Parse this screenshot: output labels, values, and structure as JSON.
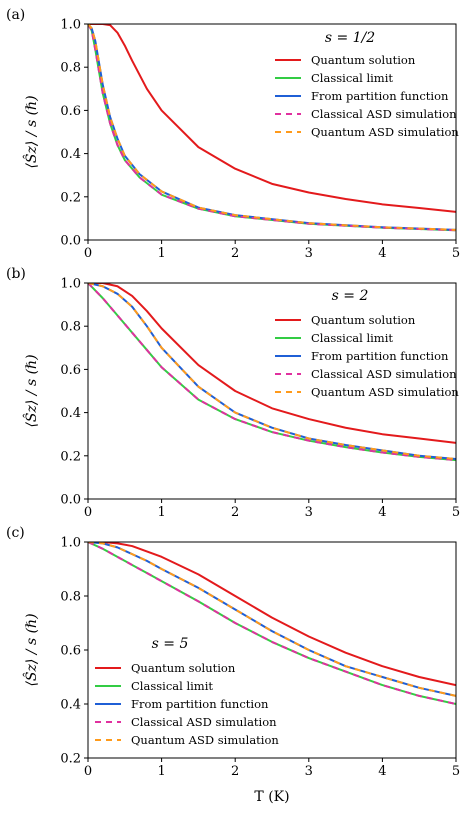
{
  "chart_data": [
    {
      "panel_label": "(a)",
      "type": "line",
      "annotation": "s = 1/2",
      "xlabel": "",
      "ylabel": "⟨Ŝz⟩ / s (ℏ)",
      "xlim": [
        0,
        5
      ],
      "ylim": [
        0,
        1
      ],
      "xticks": [
        0,
        1,
        2,
        3,
        4,
        5
      ],
      "yticks": [
        0.0,
        0.2,
        0.4,
        0.6,
        0.8,
        1.0
      ],
      "legend_position": "upper-right",
      "series": [
        {
          "name": "Quantum solution",
          "color": "#e31a1c",
          "style": "solid",
          "x": [
            0,
            0.2,
            0.3,
            0.4,
            0.5,
            0.6,
            0.8,
            1.0,
            1.5,
            2,
            2.5,
            3,
            3.5,
            4,
            4.5,
            5
          ],
          "y": [
            1.0,
            1.0,
            0.995,
            0.96,
            0.9,
            0.83,
            0.7,
            0.6,
            0.43,
            0.33,
            0.26,
            0.22,
            0.19,
            0.165,
            0.148,
            0.13
          ]
        },
        {
          "name": "Classical limit",
          "color": "#33cc44",
          "style": "solid",
          "x": [
            0,
            0.05,
            0.1,
            0.2,
            0.3,
            0.4,
            0.5,
            0.7,
            1.0,
            1.5,
            2,
            3,
            4,
            5
          ],
          "y": [
            1.0,
            0.97,
            0.88,
            0.68,
            0.54,
            0.44,
            0.37,
            0.29,
            0.21,
            0.145,
            0.11,
            0.075,
            0.057,
            0.045
          ]
        },
        {
          "name": "From partition function",
          "color": "#1f5fd6",
          "style": "solid",
          "x": [
            0,
            0.05,
            0.1,
            0.2,
            0.3,
            0.4,
            0.5,
            0.7,
            1.0,
            1.5,
            2,
            3,
            4,
            5
          ],
          "y": [
            1.0,
            0.98,
            0.92,
            0.72,
            0.57,
            0.47,
            0.39,
            0.305,
            0.225,
            0.15,
            0.115,
            0.078,
            0.059,
            0.047
          ]
        },
        {
          "name": "Classical ASD simulation",
          "color": "#e0309f",
          "style": "dashed",
          "x": [
            0,
            0.05,
            0.1,
            0.2,
            0.3,
            0.4,
            0.5,
            0.7,
            1.0,
            1.5,
            2,
            3,
            4,
            5
          ],
          "y": [
            1.0,
            0.97,
            0.88,
            0.68,
            0.54,
            0.44,
            0.37,
            0.29,
            0.21,
            0.145,
            0.11,
            0.075,
            0.057,
            0.045
          ]
        },
        {
          "name": "Quantum ASD simulation",
          "color": "#ff9a1a",
          "style": "dashed",
          "x": [
            0,
            0.05,
            0.1,
            0.2,
            0.3,
            0.4,
            0.5,
            0.7,
            1.0,
            1.5,
            2,
            3,
            4,
            5
          ],
          "y": [
            1.0,
            0.98,
            0.92,
            0.72,
            0.57,
            0.47,
            0.39,
            0.305,
            0.225,
            0.15,
            0.115,
            0.078,
            0.059,
            0.047
          ]
        }
      ]
    },
    {
      "panel_label": "(b)",
      "type": "line",
      "annotation": "s = 2",
      "xlabel": "",
      "ylabel": "⟨Ŝz⟩ / s (ℏ)",
      "xlim": [
        0,
        5
      ],
      "ylim": [
        0,
        1
      ],
      "xticks": [
        0,
        1,
        2,
        3,
        4,
        5
      ],
      "yticks": [
        0.0,
        0.2,
        0.4,
        0.6,
        0.8,
        1.0
      ],
      "legend_position": "upper-right",
      "series": [
        {
          "name": "Quantum solution",
          "color": "#e31a1c",
          "style": "solid",
          "x": [
            0,
            0.2,
            0.4,
            0.6,
            0.8,
            1.0,
            1.5,
            2,
            2.5,
            3,
            3.5,
            4,
            4.5,
            5
          ],
          "y": [
            1.0,
            1.0,
            0.985,
            0.94,
            0.87,
            0.79,
            0.62,
            0.5,
            0.42,
            0.37,
            0.33,
            0.3,
            0.28,
            0.26
          ]
        },
        {
          "name": "Classical limit",
          "color": "#33cc44",
          "style": "solid",
          "x": [
            0,
            0.2,
            0.4,
            0.6,
            0.8,
            1.0,
            1.5,
            2,
            2.5,
            3,
            3.5,
            4,
            4.5,
            5
          ],
          "y": [
            1.0,
            0.93,
            0.85,
            0.77,
            0.69,
            0.61,
            0.46,
            0.37,
            0.31,
            0.27,
            0.24,
            0.215,
            0.195,
            0.18
          ]
        },
        {
          "name": "From partition function",
          "color": "#1f5fd6",
          "style": "solid",
          "x": [
            0,
            0.2,
            0.4,
            0.6,
            0.8,
            1.0,
            1.5,
            2,
            2.5,
            3,
            3.5,
            4,
            4.5,
            5
          ],
          "y": [
            1.0,
            0.985,
            0.95,
            0.89,
            0.8,
            0.7,
            0.52,
            0.4,
            0.33,
            0.28,
            0.25,
            0.225,
            0.2,
            0.185
          ]
        },
        {
          "name": "Classical ASD simulation",
          "color": "#e0309f",
          "style": "dashed",
          "x": [
            0,
            0.2,
            0.4,
            0.6,
            0.8,
            1.0,
            1.5,
            2,
            2.5,
            3,
            3.5,
            4,
            4.5,
            5
          ],
          "y": [
            1.0,
            0.93,
            0.85,
            0.77,
            0.69,
            0.61,
            0.46,
            0.37,
            0.31,
            0.27,
            0.24,
            0.215,
            0.195,
            0.18
          ]
        },
        {
          "name": "Quantum ASD simulation",
          "color": "#ff9a1a",
          "style": "dashed",
          "x": [
            0,
            0.2,
            0.4,
            0.6,
            0.8,
            1.0,
            1.5,
            2,
            2.5,
            3,
            3.5,
            4,
            4.5,
            5
          ],
          "y": [
            1.0,
            0.985,
            0.95,
            0.89,
            0.8,
            0.7,
            0.52,
            0.4,
            0.33,
            0.28,
            0.25,
            0.225,
            0.2,
            0.185
          ]
        }
      ]
    },
    {
      "panel_label": "(c)",
      "type": "line",
      "annotation": "s = 5",
      "xlabel": "T (K)",
      "ylabel": "⟨Ŝz⟩ / s (ℏ)",
      "xlim": [
        0,
        5
      ],
      "ylim": [
        0.2,
        1
      ],
      "xticks": [
        0,
        1,
        2,
        3,
        4,
        5
      ],
      "yticks": [
        0.2,
        0.4,
        0.6,
        0.8,
        1.0
      ],
      "legend_position": "lower-left",
      "series": [
        {
          "name": "Quantum solution",
          "color": "#e31a1c",
          "style": "solid",
          "x": [
            0,
            0.2,
            0.4,
            0.6,
            0.8,
            1.0,
            1.5,
            2,
            2.5,
            3,
            3.5,
            4,
            4.5,
            5
          ],
          "y": [
            1.0,
            1.0,
            0.995,
            0.985,
            0.965,
            0.945,
            0.88,
            0.8,
            0.72,
            0.65,
            0.59,
            0.54,
            0.5,
            0.47
          ]
        },
        {
          "name": "Classical limit",
          "color": "#33cc44",
          "style": "solid",
          "x": [
            0,
            0.2,
            0.4,
            0.6,
            0.8,
            1.0,
            1.5,
            2,
            2.5,
            3,
            3.5,
            4,
            4.5,
            5
          ],
          "y": [
            1.0,
            0.975,
            0.945,
            0.915,
            0.885,
            0.855,
            0.78,
            0.7,
            0.63,
            0.57,
            0.52,
            0.47,
            0.43,
            0.4
          ]
        },
        {
          "name": "From partition function",
          "color": "#1f5fd6",
          "style": "solid",
          "x": [
            0,
            0.2,
            0.4,
            0.6,
            0.8,
            1.0,
            1.5,
            2,
            2.5,
            3,
            3.5,
            4,
            4.5,
            5
          ],
          "y": [
            1.0,
            0.995,
            0.98,
            0.955,
            0.93,
            0.9,
            0.83,
            0.75,
            0.67,
            0.6,
            0.54,
            0.5,
            0.46,
            0.43
          ]
        },
        {
          "name": "Classical ASD simulation",
          "color": "#e0309f",
          "style": "dashed",
          "x": [
            0,
            0.2,
            0.4,
            0.6,
            0.8,
            1.0,
            1.5,
            2,
            2.5,
            3,
            3.5,
            4,
            4.5,
            5
          ],
          "y": [
            1.0,
            0.975,
            0.945,
            0.915,
            0.885,
            0.855,
            0.78,
            0.7,
            0.63,
            0.57,
            0.52,
            0.47,
            0.43,
            0.4
          ]
        },
        {
          "name": "Quantum ASD simulation",
          "color": "#ff9a1a",
          "style": "dashed",
          "x": [
            0,
            0.2,
            0.4,
            0.6,
            0.8,
            1.0,
            1.5,
            2,
            2.5,
            3,
            3.5,
            4,
            4.5,
            5
          ],
          "y": [
            1.0,
            0.995,
            0.98,
            0.955,
            0.93,
            0.9,
            0.83,
            0.75,
            0.67,
            0.6,
            0.54,
            0.5,
            0.46,
            0.43
          ]
        }
      ]
    }
  ]
}
